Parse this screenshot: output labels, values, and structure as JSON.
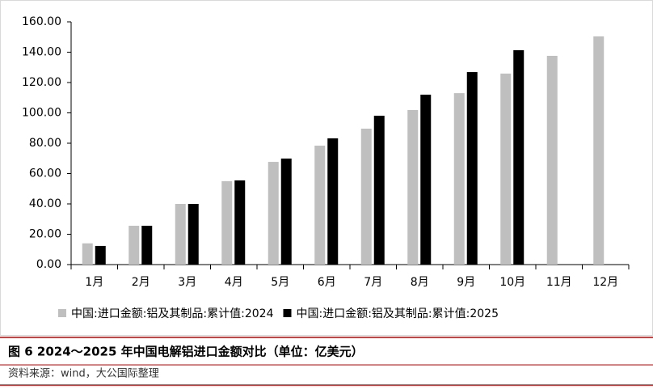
{
  "chart_data": {
    "type": "bar",
    "categories": [
      "1月",
      "2月",
      "3月",
      "4月",
      "5月",
      "6月",
      "7月",
      "8月",
      "9月",
      "10月",
      "11月",
      "12月"
    ],
    "series": [
      {
        "name": "中国:进口金额:铝及其制品:累计值:2024",
        "color": "#bfbfbf",
        "values": [
          14,
          25.6,
          40,
          55,
          67.7,
          78.4,
          89.6,
          101.9,
          113,
          125.9,
          137.6,
          150.4
        ]
      },
      {
        "name": "中国:进口金额:铝及其制品:累计值:2025",
        "color": "#000000",
        "values": [
          12.3,
          25.6,
          40,
          55.5,
          69.9,
          83.2,
          98.1,
          112,
          126.9,
          141.3,
          null,
          null
        ]
      }
    ],
    "ylim": [
      0,
      160
    ],
    "yticks": [
      {
        "value": 0,
        "label": "0.00"
      },
      {
        "value": 20,
        "label": "20.00"
      },
      {
        "value": 40,
        "label": "40.00"
      },
      {
        "value": 60,
        "label": "60.00"
      },
      {
        "value": 80,
        "label": "80.00"
      },
      {
        "value": 100,
        "label": "100.00"
      },
      {
        "value": 120,
        "label": "120.00"
      },
      {
        "value": 140,
        "label": "140.00"
      },
      {
        "value": 160,
        "label": "160.00"
      }
    ],
    "grid": false,
    "legend": "bottom"
  },
  "caption": "图 6 2024～2025 年中国电解铝进口金额对比（单位：亿美元）",
  "source": "资料来源：wind，大公国际整理"
}
